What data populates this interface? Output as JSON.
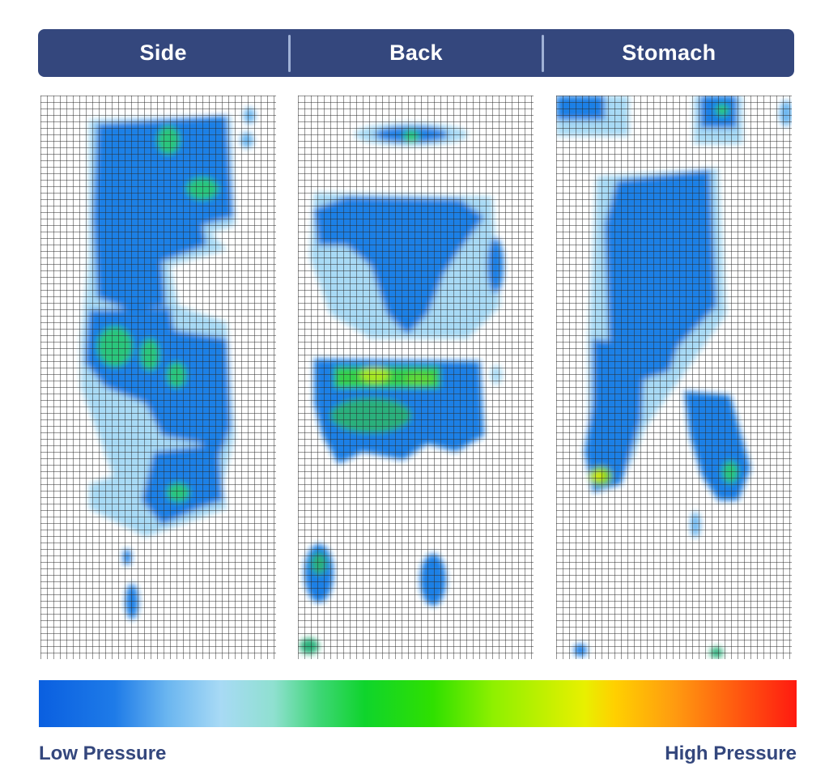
{
  "tabs": [
    "Side",
    "Back",
    "Stomach"
  ],
  "colorbar": {
    "low_label": "Low Pressure",
    "high_label": "High Pressure",
    "colors": [
      "#0a5fe0",
      "#6bb6f0",
      "#a8daf5",
      "#3ed676",
      "#0fd42c",
      "#8ff000",
      "#e8f000",
      "#ff9a10",
      "#ff1a10"
    ]
  },
  "chart_data": {
    "type": "heatmap",
    "panels": [
      {
        "name": "Side"
      },
      {
        "name": "Back"
      },
      {
        "name": "Stomach"
      }
    ],
    "legend": {
      "min_label": "Low Pressure",
      "max_label": "High Pressure",
      "placement": "bottom"
    },
    "grid": true
  }
}
